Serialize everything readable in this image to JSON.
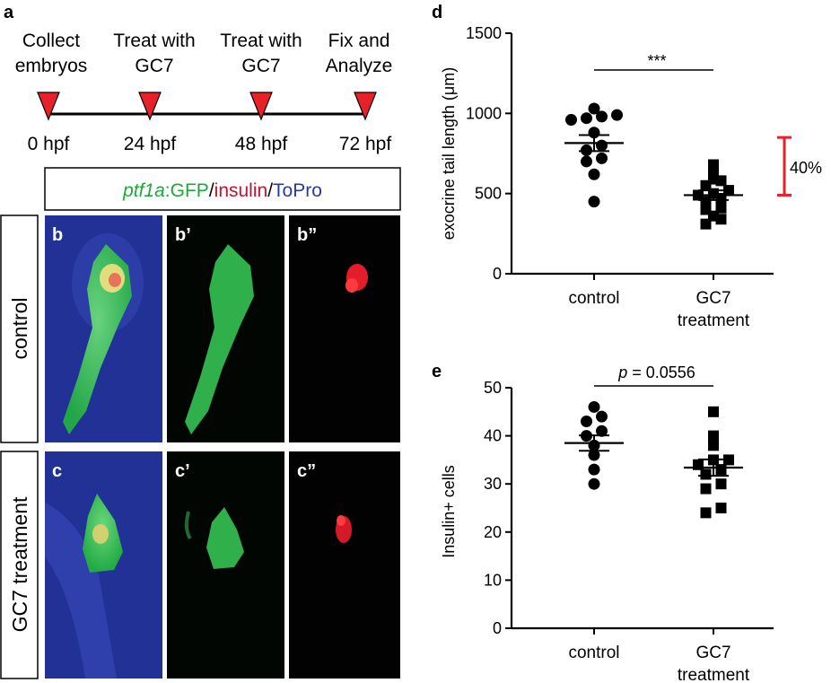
{
  "panels": {
    "a": "a",
    "b": "b",
    "b1": "b’",
    "b2": "b”",
    "c": "c",
    "c1": "c’",
    "c2": "c”",
    "d": "d",
    "e": "e"
  },
  "timeline": {
    "events": [
      {
        "line1": "Collect",
        "line2": "embryos",
        "time": "0 hpf"
      },
      {
        "line1": "Treat with",
        "line2": "GC7",
        "time": "24 hpf"
      },
      {
        "line1": "Treat with",
        "line2": "GC7",
        "time": "48 hpf"
      },
      {
        "line1": "Fix and",
        "line2": "Analyze",
        "time": "72 hpf"
      }
    ],
    "marker_color": "#e8202a"
  },
  "legend": {
    "part1": "ptf1a",
    "part2": ":GFP",
    "sep1": "/",
    "part3": "insulin",
    "sep2": "/",
    "part4": "ToPro",
    "colors": {
      "gfp": "#1ea83a",
      "insulin": "#c4122f",
      "topro": "#2b3a9a"
    }
  },
  "rows": {
    "control": "control",
    "treatment": "GC7 treatment"
  },
  "chart_data": [
    {
      "type": "scatter",
      "panel": "d",
      "ylabel": "exocrine tail length (μm)",
      "ylim": [
        0,
        1500
      ],
      "yticks": [
        0,
        500,
        1000,
        1500
      ],
      "categories": [
        {
          "line1": "control",
          "line2": ""
        },
        {
          "line1": "GC7",
          "line2": "treatment"
        }
      ],
      "series": [
        {
          "marker": "circle",
          "mean": 815,
          "sem": 50,
          "values": [
            450,
            620,
            700,
            720,
            770,
            800,
            880,
            960,
            970,
            980,
            990,
            1030
          ]
        },
        {
          "marker": "square",
          "mean": 490,
          "sem": 30,
          "values": [
            310,
            340,
            360,
            400,
            410,
            450,
            470,
            490,
            500,
            520,
            550,
            580,
            590,
            640,
            680
          ]
        }
      ],
      "significance": "***",
      "annotation": {
        "text": "40%",
        "top": 850,
        "bottom": 490,
        "color": "#e8202a"
      }
    },
    {
      "type": "scatter",
      "panel": "e",
      "ylabel": "Insulin+ cells",
      "ylim": [
        0,
        50
      ],
      "yticks": [
        0,
        10,
        20,
        30,
        40,
        50
      ],
      "categories": [
        {
          "line1": "control",
          "line2": ""
        },
        {
          "line1": "GC7",
          "line2": "treatment"
        }
      ],
      "series": [
        {
          "marker": "circle",
          "mean": 38.5,
          "sem": 1.6,
          "values": [
            30,
            33,
            36,
            38,
            40,
            41,
            43,
            44,
            46
          ]
        },
        {
          "marker": "square",
          "mean": 33.4,
          "sem": 1.7,
          "values": [
            24,
            25,
            29,
            30,
            32,
            33,
            34,
            35,
            35,
            38,
            40,
            45
          ]
        }
      ],
      "significance": {
        "italic": "p",
        "rest": " = 0.0556"
      }
    }
  ]
}
